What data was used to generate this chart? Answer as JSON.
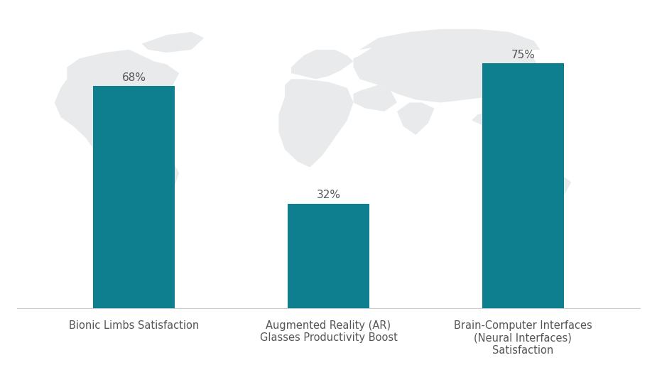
{
  "categories": [
    "Bionic Limbs Satisfaction",
    "Augmented Reality (AR)\nGlasses Productivity Boost",
    "Brain-Computer Interfaces\n(Neural Interfaces)\nSatisfaction"
  ],
  "values": [
    68,
    32,
    75
  ],
  "bar_color": "#0e7f8f",
  "label_color": "#555555",
  "value_labels": [
    "68%",
    "32%",
    "75%"
  ],
  "background_color": "#ffffff",
  "ylim": [
    0,
    90
  ],
  "bar_width": 0.42,
  "value_fontsize": 11,
  "tick_label_fontsize": 10.5,
  "watermark_color": "#e8eaeb",
  "spine_color": "#cccccc"
}
